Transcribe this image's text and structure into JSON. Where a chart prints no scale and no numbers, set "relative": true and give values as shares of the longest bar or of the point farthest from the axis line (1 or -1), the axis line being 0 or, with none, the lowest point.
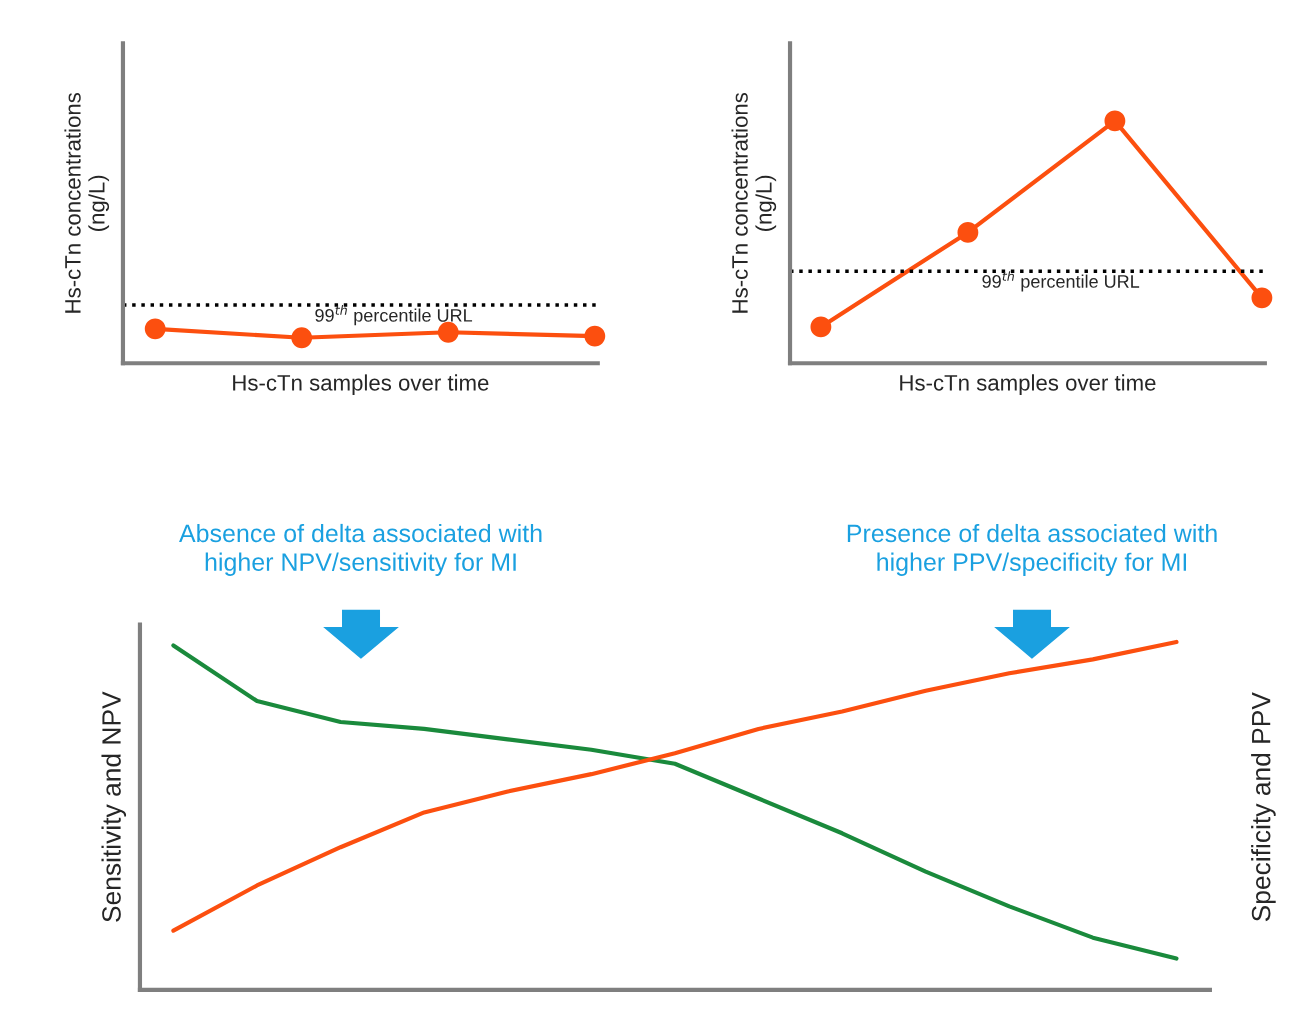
{
  "chart_data": [
    {
      "type": "line",
      "relative": true,
      "ylabel": "Hs-cTn concentrations\n(ng/L)",
      "xlabel": "Hs-cTn samples over time",
      "categories": [
        null,
        null,
        null,
        null
      ],
      "tick_labels": false,
      "marker": "circle",
      "line_style": "solid",
      "series": [
        {
          "color": "#fc4f0f",
          "values": [
            1,
            0.74,
            0.9,
            0.79
          ]
        }
      ],
      "ref_lines": [
        {
          "axis": "y",
          "value": 1.69,
          "label": "99$^{th}$ percentile URL",
          "color": "#000000",
          "line_style": "dotted"
        }
      ]
    },
    {
      "type": "line",
      "relative": true,
      "ylabel": "Hs-cTn concentrations\n(ng/L)",
      "xlabel": "Hs-cTn samples over time",
      "categories": [
        null,
        null,
        null,
        null
      ],
      "tick_labels": false,
      "line_style": "solid",
      "series": [
        {
          "type": "line",
          "color": "#fc4f0f",
          "marker": "circle",
          "values": [
            0.15,
            0.54,
            1.0,
            0.27
          ]
        }
      ],
      "ref_lines": [
        {
          "axis": "y",
          "value": 0.38,
          "label": "99$^{th}$ percentile URL",
          "color": "#000000",
          "line_style": "dotted"
        }
      ]
    },
    {
      "type": "line",
      "relative": true,
      "ylabel": "Sensitivity and NPV",
      "y2label": "Specificity and PPV",
      "tick_labels": false,
      "line_style": "solid",
      "categories": [
        null,
        null,
        null,
        null,
        null,
        null,
        null,
        null,
        null,
        null,
        null,
        null,
        null
      ],
      "series": [
        {
          "color": "#1a8a3c",
          "values": [
            0.99,
            0.83,
            0.77,
            0.75,
            0.72,
            0.69,
            0.65,
            0.55,
            0.45,
            0.34,
            0.24,
            0.15,
            0.09
          ]
        },
        {
          "color": "#fc4f0f",
          "values": [
            0.17,
            0.3,
            0.41,
            0.51,
            0.57,
            0.62,
            0.68,
            0.75,
            0.8,
            0.86,
            0.91,
            0.95,
            1.0
          ]
        }
      ],
      "annotations": [
        "Absence of delta associated with\nhigher NPV/sensitivity for MI",
        "Presence of delta associated with\nhigher PPV/specificity for MI"
      ]
    }
  ]
}
